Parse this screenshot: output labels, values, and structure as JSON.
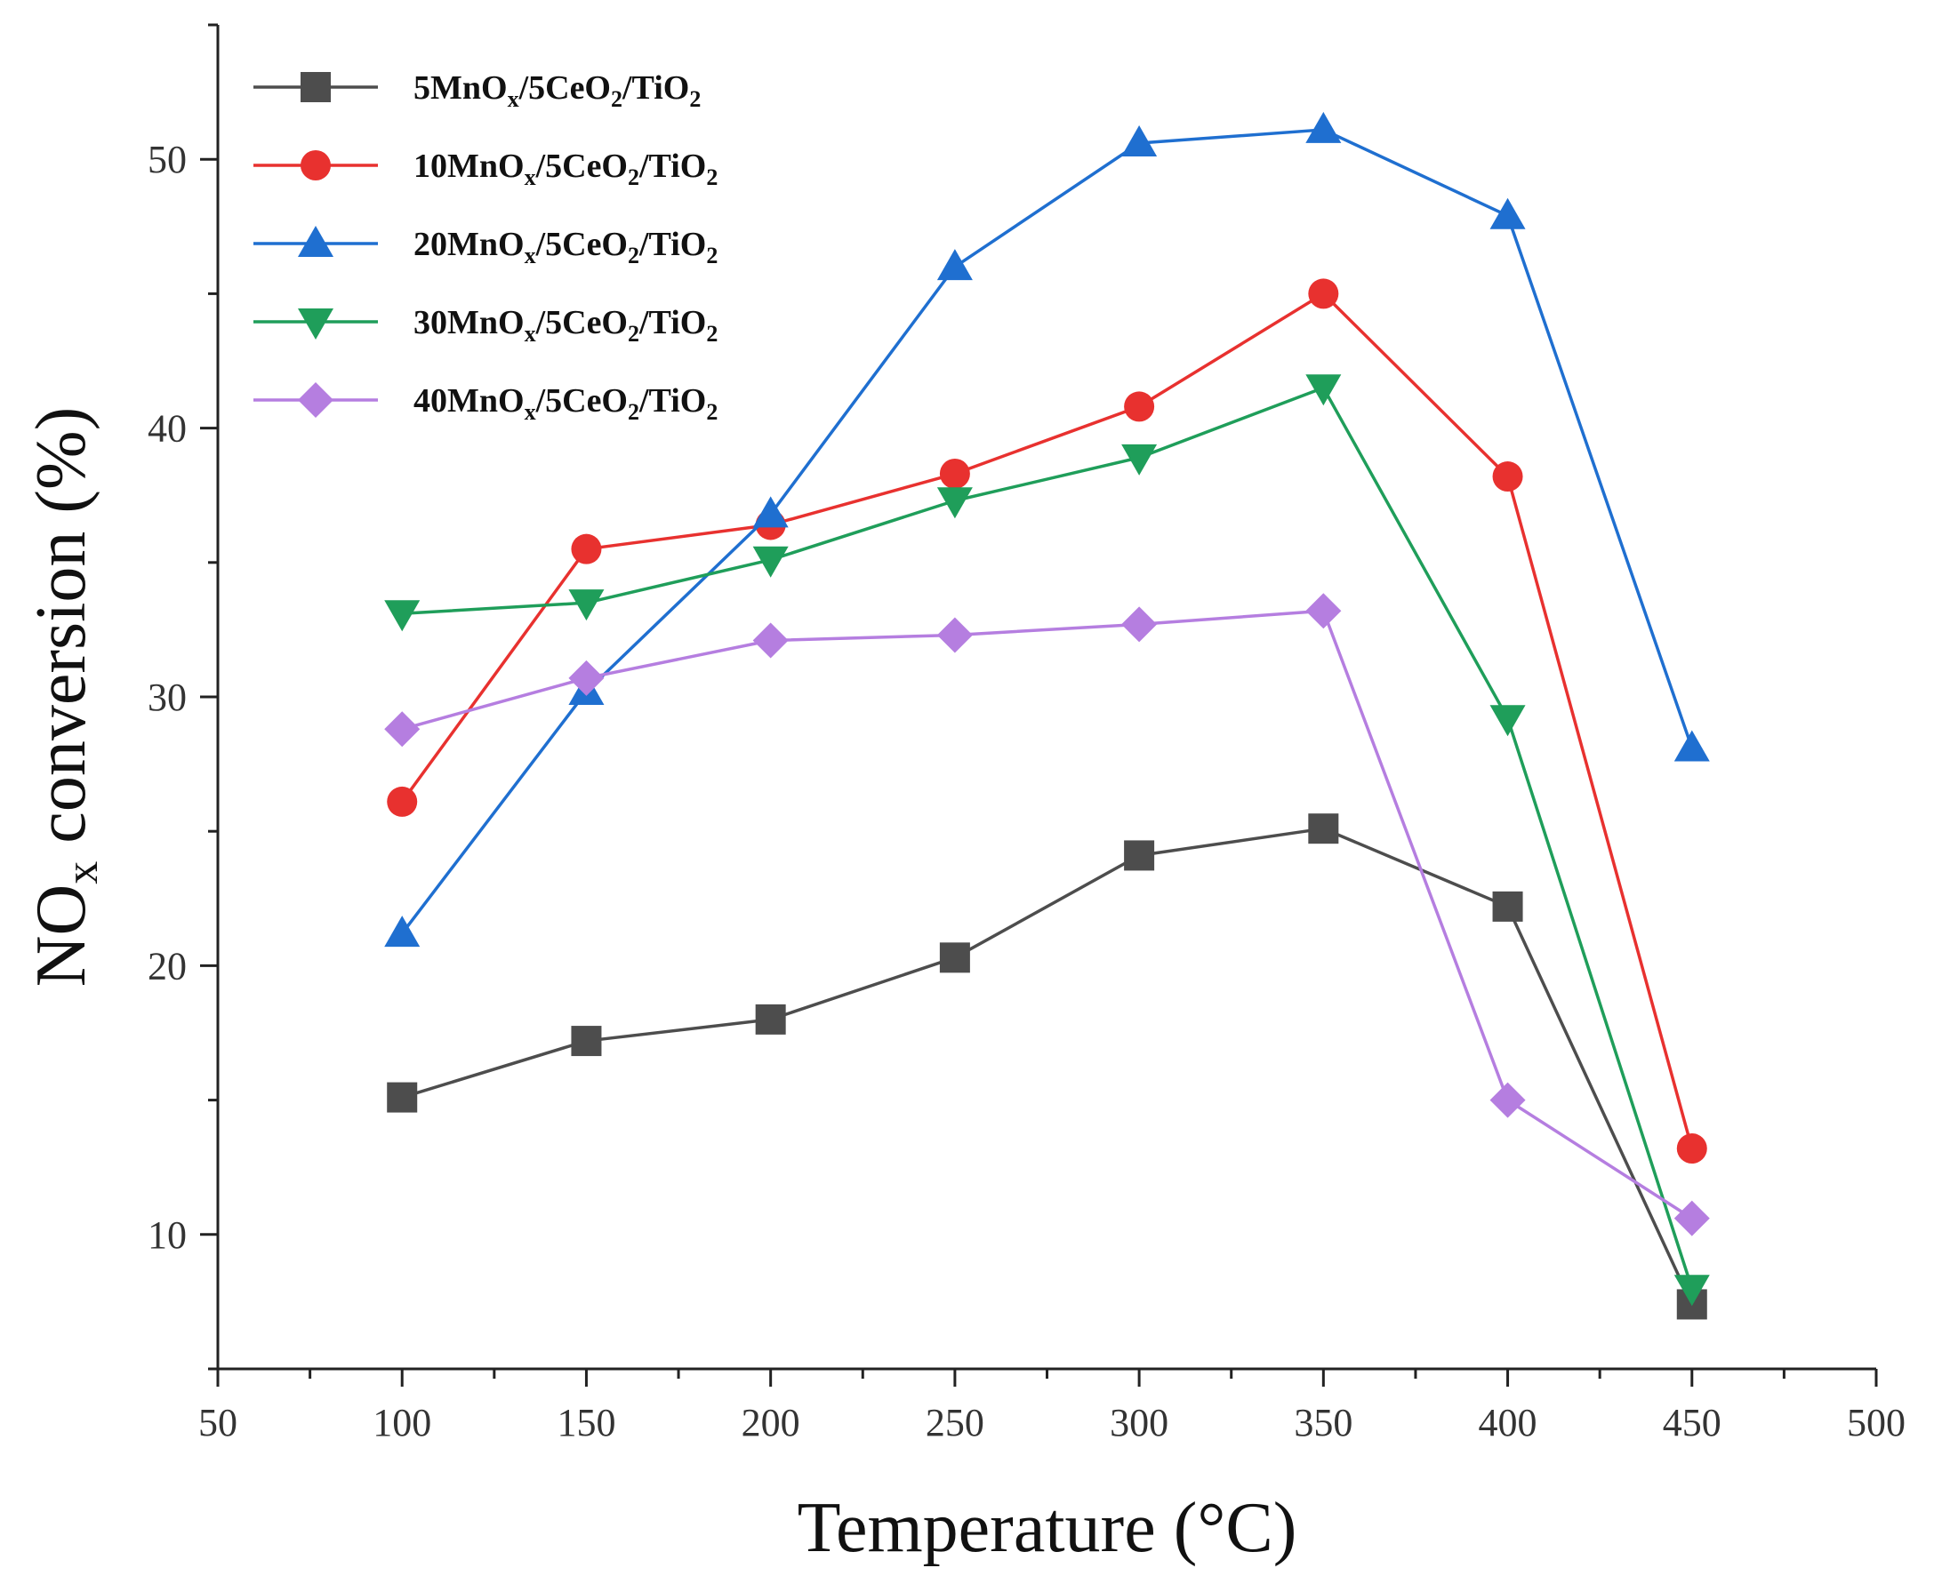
{
  "chart_data": {
    "type": "line",
    "title": "",
    "xlabel": "Temperature (°C)",
    "ylabel_parts": {
      "main": "NO",
      "sub": "x",
      "rest": " conversion (%)"
    },
    "xlim": [
      50,
      500
    ],
    "ylim": [
      5,
      55
    ],
    "xticks": [
      50,
      100,
      150,
      200,
      250,
      300,
      350,
      400,
      450,
      500
    ],
    "yticks": [
      10,
      20,
      30,
      40,
      50
    ],
    "grid": false,
    "legend_position": "top-left",
    "x": [
      100,
      150,
      200,
      250,
      300,
      350,
      400,
      450
    ],
    "series": [
      {
        "name": "5MnOx/5CeO2/TiO2",
        "label_parts": [
          "5MnO",
          "x",
          "/5CeO",
          "2",
          "/TiO",
          "2"
        ],
        "color": "#4d4d4d",
        "marker": "square",
        "values": [
          15.1,
          17.2,
          18.0,
          20.3,
          24.1,
          25.1,
          22.2,
          7.4
        ]
      },
      {
        "name": "10MnOx/5CeO2/TiO2",
        "label_parts": [
          "10MnO",
          "x",
          "/5CeO",
          "2",
          "/TiO",
          "2"
        ],
        "color": "#e8312f",
        "marker": "circle",
        "values": [
          26.1,
          35.5,
          36.4,
          38.3,
          40.8,
          45.0,
          38.2,
          13.2
        ]
      },
      {
        "name": "20MnOx/5CeO2/TiO2",
        "label_parts": [
          "20MnO",
          "x",
          "/5CeO",
          "2",
          "/TiO",
          "2"
        ],
        "color": "#1f6fd0",
        "marker": "triangle-up",
        "values": [
          21.2,
          30.2,
          36.8,
          46.0,
          50.6,
          51.1,
          47.9,
          28.1
        ]
      },
      {
        "name": "30MnOx/5CeO2/TiO2",
        "label_parts": [
          "30MnO",
          "x",
          "/5CeO",
          "2",
          "/TiO",
          "2"
        ],
        "color": "#1f9e5a",
        "marker": "triangle-down",
        "values": [
          33.1,
          33.5,
          35.1,
          37.3,
          38.9,
          41.5,
          29.2,
          8.0
        ]
      },
      {
        "name": "40MnOx/5CeO2/TiO2",
        "label_parts": [
          "40MnO",
          "x",
          "/5CeO",
          "2",
          "/TiO",
          "2"
        ],
        "color": "#b57ee0",
        "marker": "diamond",
        "values": [
          28.8,
          30.7,
          32.1,
          32.3,
          32.7,
          33.2,
          15.0,
          10.6
        ]
      }
    ]
  }
}
